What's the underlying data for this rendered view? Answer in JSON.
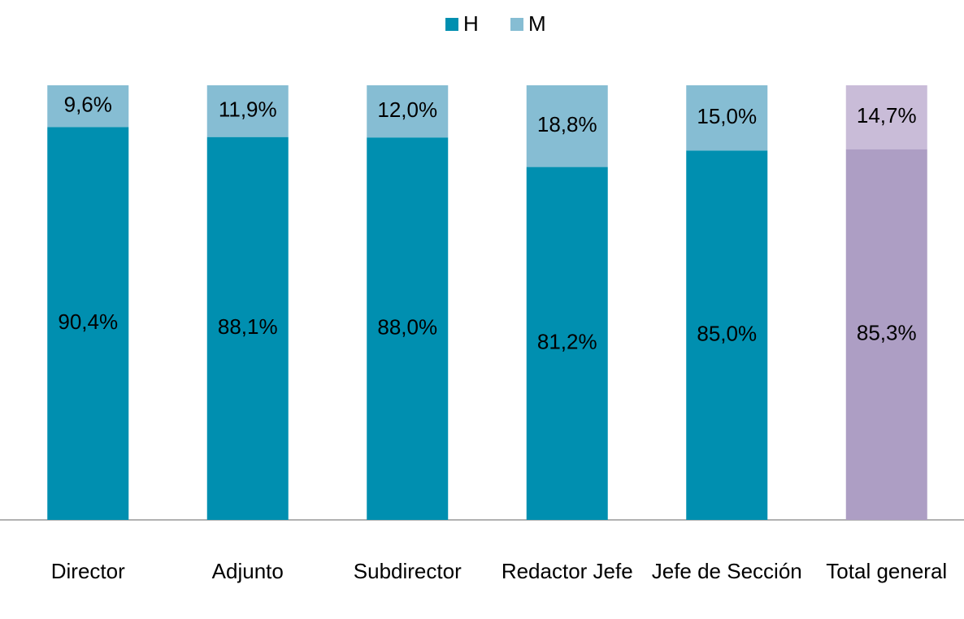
{
  "chart_data": {
    "type": "stacked_bar",
    "categories": [
      "Director",
      "Adjunto",
      "Subdirector",
      "Redactor Jefe",
      "Jefe de Sección",
      "Total general"
    ],
    "series": [
      {
        "name": "H",
        "color": "#008fb0",
        "colors": [
          "#008fb0",
          "#008fb0",
          "#008fb0",
          "#008fb0",
          "#008fb0",
          "#ad9ec4"
        ],
        "values": [
          90.4,
          88.1,
          88.0,
          81.2,
          85.0,
          85.3
        ],
        "value_labels": [
          "90,4%",
          "88,1%",
          "88,0%",
          "81,2%",
          "85,0%",
          "85,3%"
        ]
      },
      {
        "name": "M",
        "color": "#86bdd3",
        "colors": [
          "#86bdd3",
          "#86bdd3",
          "#86bdd3",
          "#86bdd3",
          "#86bdd3",
          "#c9bcd8"
        ],
        "values": [
          9.6,
          11.9,
          12.0,
          18.8,
          15.0,
          14.7
        ],
        "value_labels": [
          "9,6%",
          "11,9%",
          "12,0%",
          "18,8%",
          "15,0%",
          "14,7%"
        ]
      }
    ],
    "ylim": [
      0,
      100
    ],
    "legend": "top"
  }
}
